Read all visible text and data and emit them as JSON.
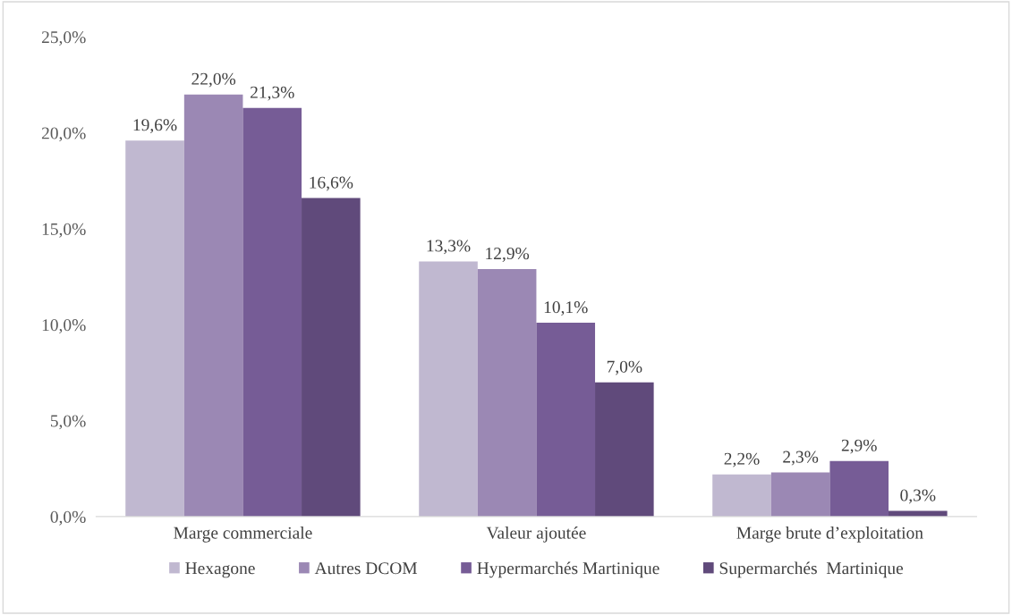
{
  "chart_data": {
    "type": "bar",
    "categories": [
      "Marge commerciale",
      "Valeur ajoutée",
      "Marge brute d’exploitation"
    ],
    "series": [
      {
        "name": "Hexagone",
        "color": "#c0b8d0",
        "values": [
          19.6,
          13.3,
          2.2
        ],
        "value_labels": [
          "19,6%",
          "13,3%",
          "2,2%"
        ]
      },
      {
        "name": "Autres DCOM",
        "color": "#9b88b4",
        "values": [
          22.0,
          12.9,
          2.3
        ],
        "value_labels": [
          "22,0%",
          "12,9%",
          "2,3%"
        ]
      },
      {
        "name": "Hypermarchés Martinique",
        "color": "#765c96",
        "values": [
          21.3,
          10.1,
          2.9
        ],
        "value_labels": [
          "21,3%",
          "10,1%",
          "2,9%"
        ]
      },
      {
        "name": "Supermarchés  Martinique",
        "color": "#604a7b",
        "values": [
          16.6,
          7.0,
          0.3
        ],
        "value_labels": [
          "16,6%",
          "7,0%",
          "0,3%"
        ]
      }
    ],
    "ylim": [
      0,
      25
    ],
    "yticks": [
      {
        "value": 0,
        "label": "0,0%"
      },
      {
        "value": 5,
        "label": "5,0%"
      },
      {
        "value": 10,
        "label": "10,0%"
      },
      {
        "value": 15,
        "label": "15,0%"
      },
      {
        "value": 20,
        "label": "20,0%"
      },
      {
        "value": 25,
        "label": "25,0%"
      }
    ],
    "grid": false,
    "legend": "bottom"
  }
}
